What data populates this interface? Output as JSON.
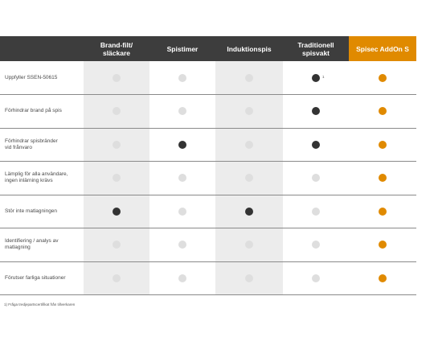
{
  "columns": [
    {
      "label": "Brand-filt/\nsläckare"
    },
    {
      "label": "Spistimer"
    },
    {
      "label": "Induktionspis"
    },
    {
      "label": "Traditionell\nspisvakt"
    },
    {
      "label": "Spisec AddOn S"
    }
  ],
  "rows": [
    {
      "label": "Uppfyller SSEN-50615",
      "cells": [
        "empty",
        "empty",
        "empty",
        "filled",
        "orange"
      ],
      "note_col": 3,
      "note": "1"
    },
    {
      "label": "Förhindrar brand på spis",
      "cells": [
        "empty",
        "empty",
        "empty",
        "filled",
        "orange"
      ]
    },
    {
      "label": "Förhindrar spisbränder\nvid frånvaro",
      "cells": [
        "empty",
        "filled",
        "empty",
        "filled",
        "orange"
      ]
    },
    {
      "label": "Lämplig för alla användare,\ningen inlärning krävs",
      "cells": [
        "empty",
        "empty",
        "empty",
        "empty",
        "orange"
      ]
    },
    {
      "label": "Stör inte matlagningen",
      "cells": [
        "filled",
        "empty",
        "filled",
        "empty",
        "orange"
      ]
    },
    {
      "label": "Identifiering / analys av\nmatlagning",
      "cells": [
        "empty",
        "empty",
        "empty",
        "empty",
        "orange"
      ]
    },
    {
      "label": "Förutser farliga situationer",
      "cells": [
        "empty",
        "empty",
        "empty",
        "empty",
        "orange"
      ]
    }
  ],
  "footnote": "1) Fråga tredjepartscertifikat från tillverkaren",
  "colors": {
    "accent": "#e08a00",
    "header": "#3d3d3d",
    "shade": "#ececec",
    "filled_dot": "#333333",
    "empty_dot": "#dedede"
  }
}
